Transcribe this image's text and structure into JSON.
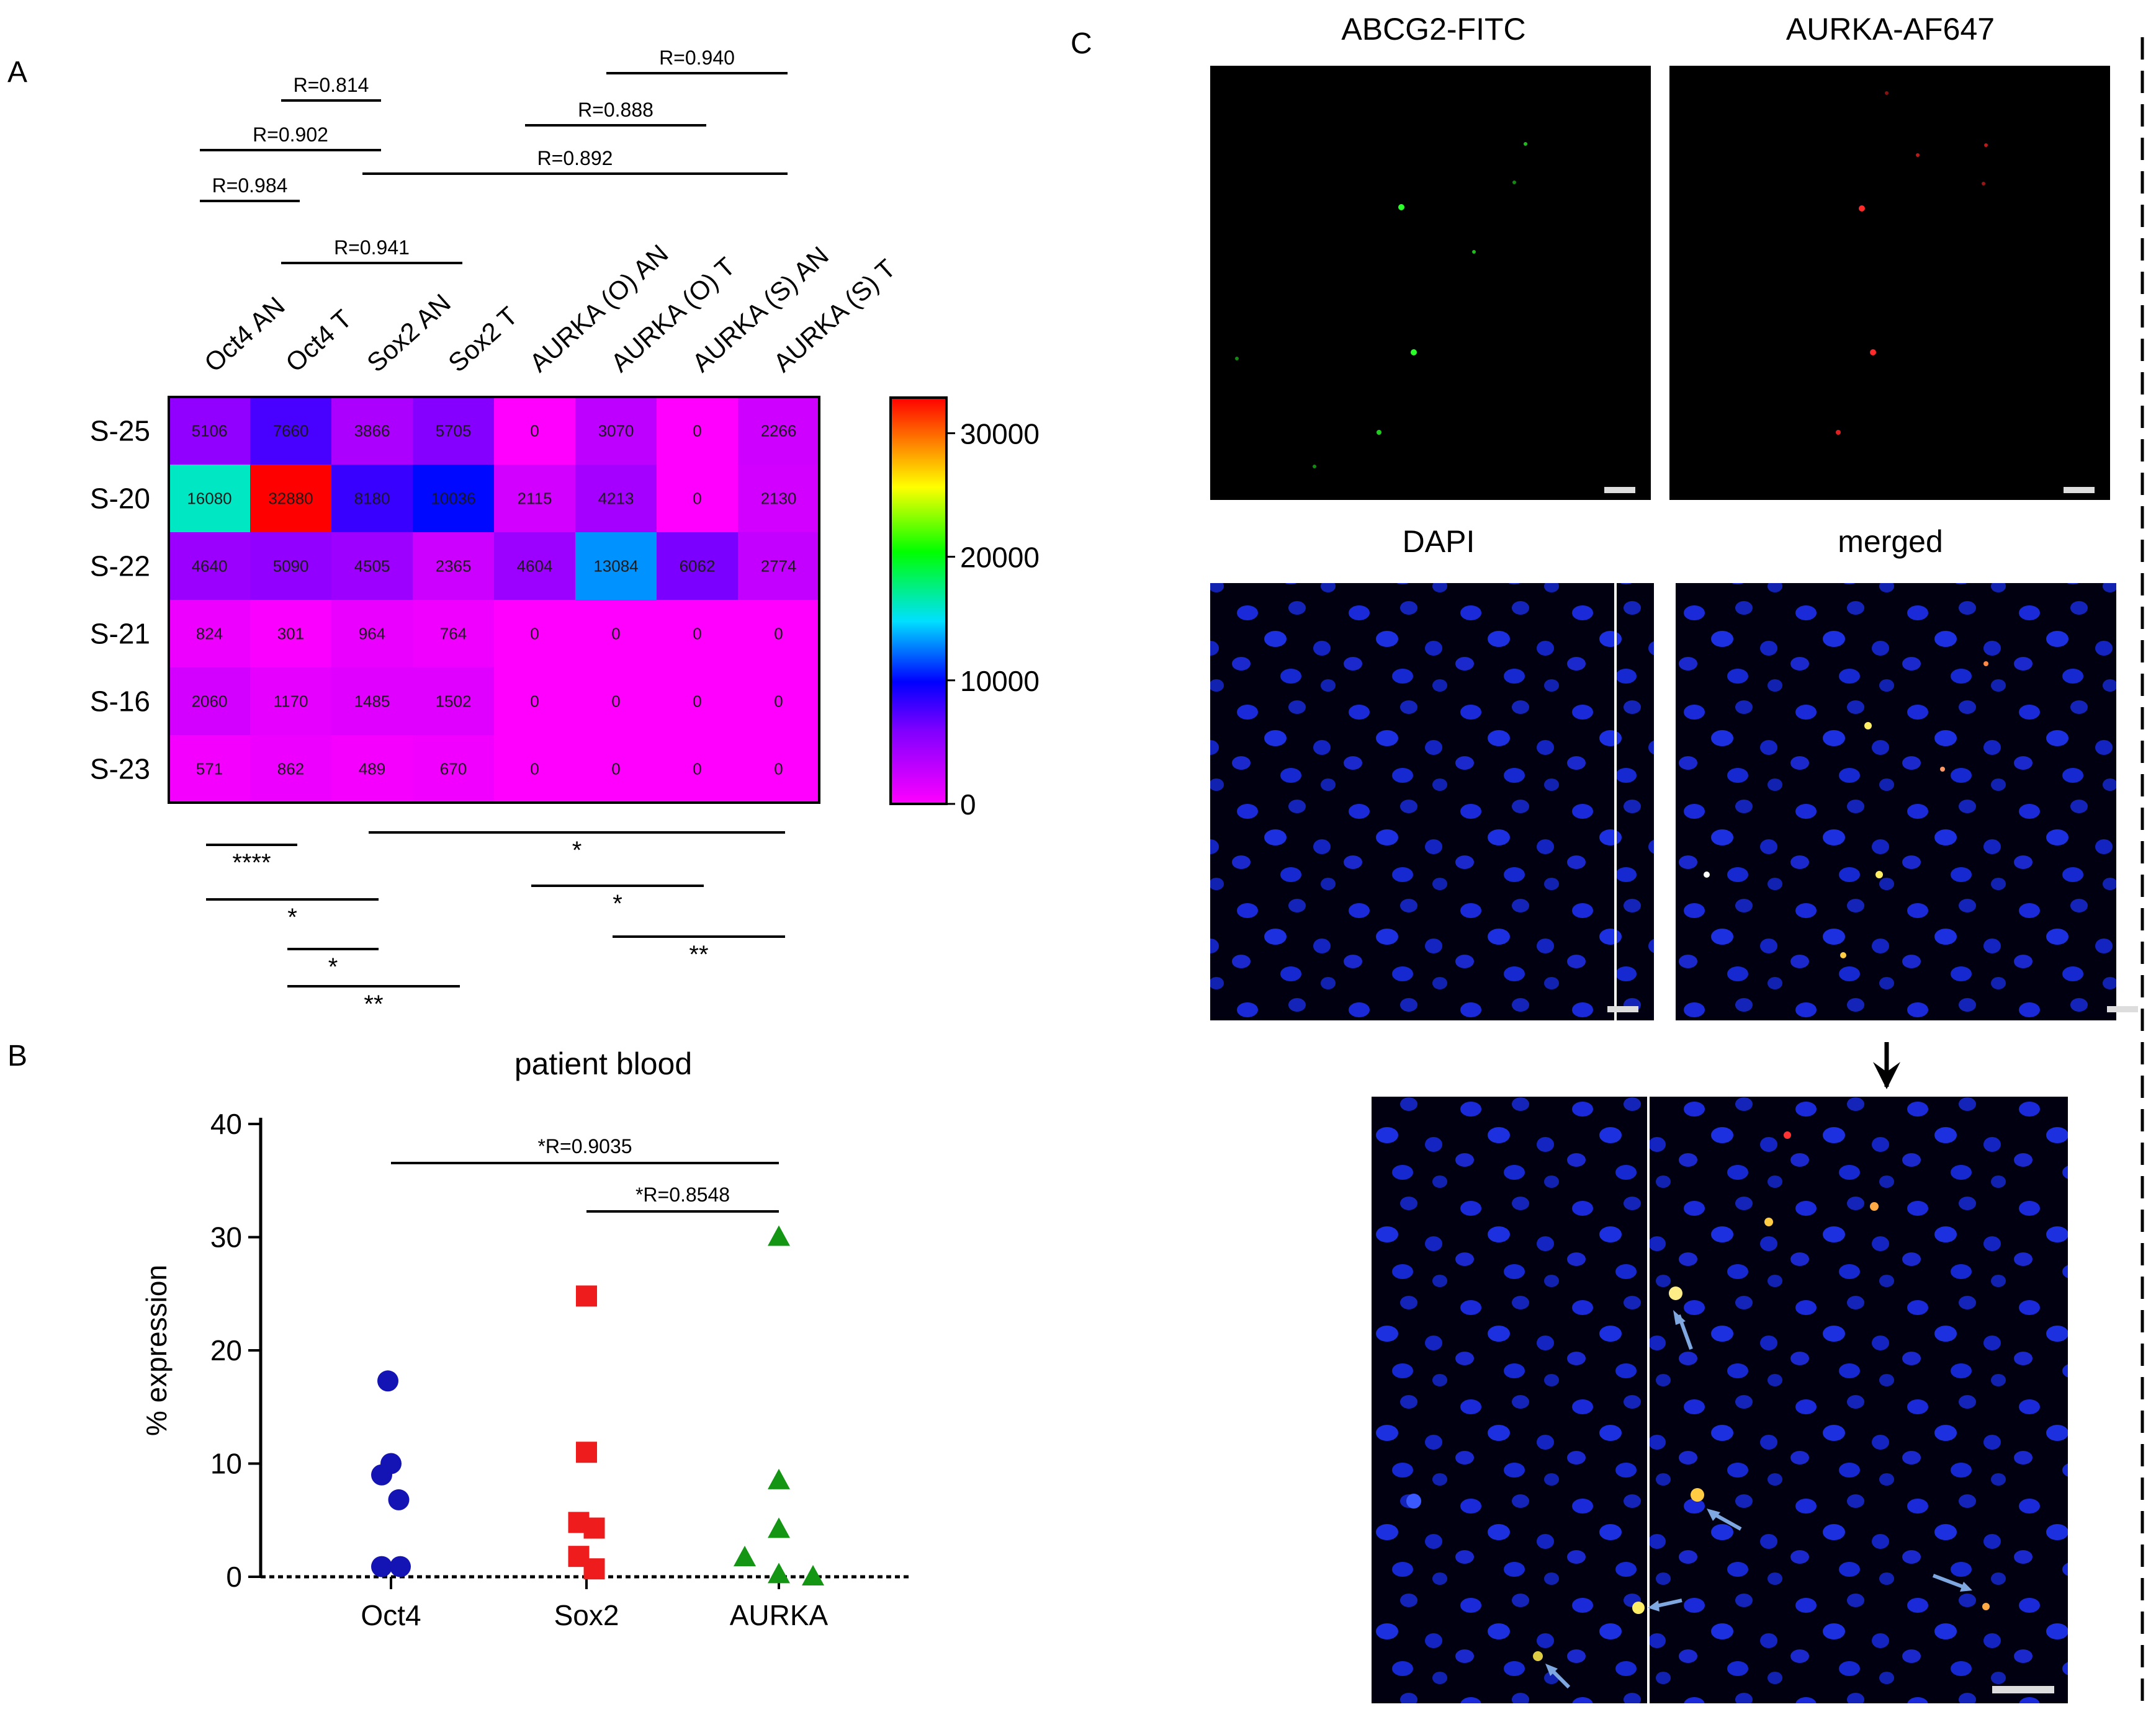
{
  "panel_labels": {
    "a": "A",
    "b": "B",
    "c": "C"
  },
  "chart_data": [
    {
      "type": "heatmap",
      "columns": [
        "Oct4 AN",
        "Oct4 T",
        "Sox2 AN",
        "Sox2 T",
        "AURKA (O) AN",
        "AURKA (O) T",
        "AURKA (S) AN",
        "AURKA (S) T"
      ],
      "rows": [
        "S-25",
        "S-20",
        "S-22",
        "S-21",
        "S-16",
        "S-23"
      ],
      "values": [
        [
          5106,
          7660,
          3866,
          5705,
          0,
          3070,
          0,
          2266
        ],
        [
          16080,
          32880,
          8180,
          10036,
          2115,
          4213,
          0,
          2130
        ],
        [
          4640,
          5090,
          4505,
          2365,
          4604,
          13084,
          6062,
          2774
        ],
        [
          824,
          301,
          964,
          764,
          0,
          0,
          0,
          0
        ],
        [
          2060,
          1170,
          1485,
          1502,
          0,
          0,
          0,
          0
        ],
        [
          571,
          862,
          489,
          670,
          0,
          0,
          0,
          0
        ]
      ],
      "value_labels": [
        [
          "5106",
          "7660",
          "3866",
          "5705",
          "0",
          "3070",
          "0",
          "2266"
        ],
        [
          "16080",
          "32880",
          "8180",
          "10036",
          "2115",
          "4213",
          "0",
          "2130"
        ],
        [
          "4640",
          "5090",
          "4505",
          "2365",
          "4604",
          "13084",
          "6062",
          "2774"
        ],
        [
          "824",
          "301",
          "964",
          "764",
          "0",
          "0",
          "0",
          "0"
        ],
        [
          "2060",
          "1170",
          "1485",
          "1502",
          "0",
          "0",
          "0",
          "0"
        ],
        [
          "571",
          "862",
          "489",
          "670",
          "0",
          "0",
          "0",
          "0"
        ]
      ],
      "colorbar": {
        "min": 0,
        "max": 32880,
        "ticks": [
          0,
          10000,
          20000,
          30000
        ],
        "tick_labels": [
          "0",
          "10000",
          "20000",
          "30000"
        ]
      },
      "correlations": [
        {
          "label": "R=0.940",
          "from": 5,
          "to": 7
        },
        {
          "label": "R=0.814",
          "from": 1,
          "to": 2
        },
        {
          "label": "R=0.888",
          "from": 4,
          "to": 6
        },
        {
          "label": "R=0.902",
          "from": 0,
          "to": 2
        },
        {
          "label": "R=0.892",
          "from": 2,
          "to": 7
        },
        {
          "label": "R=0.984",
          "from": 0,
          "to": 1
        },
        {
          "label": "R=0.941",
          "from": 1,
          "to": 3
        }
      ],
      "significance": [
        {
          "label": "****",
          "from": 0,
          "to": 1
        },
        {
          "label": "*",
          "from": 2,
          "to": 7
        },
        {
          "label": "*",
          "from": 0,
          "to": 2
        },
        {
          "label": "*",
          "from": 4,
          "to": 6
        },
        {
          "label": "*",
          "from": 1,
          "to": 2
        },
        {
          "label": "**",
          "from": 5,
          "to": 7
        },
        {
          "label": "**",
          "from": 1,
          "to": 3
        }
      ]
    },
    {
      "type": "scatter",
      "title": "patient blood",
      "ylabel": "% expression",
      "xlabel": "",
      "categories": [
        "Oct4",
        "Sox2",
        "AURKA"
      ],
      "ylim": [
        0,
        40
      ],
      "yticks": [
        0,
        10,
        20,
        30,
        40
      ],
      "series": [
        {
          "category": "Oct4",
          "marker": "circle",
          "color": "#1414b4",
          "points": [
            [
              -0.02,
              17.3
            ],
            [
              0,
              10
            ],
            [
              -0.06,
              9
            ],
            [
              0.05,
              6.8
            ],
            [
              -0.06,
              0.9
            ],
            [
              0.06,
              0.9
            ]
          ]
        },
        {
          "category": "Sox2",
          "marker": "square",
          "color": "#ee1c1c",
          "points": [
            [
              0,
              24.8
            ],
            [
              0,
              11
            ],
            [
              -0.05,
              4.8
            ],
            [
              0.05,
              4.3
            ],
            [
              -0.05,
              1.8
            ],
            [
              0.05,
              0.7
            ]
          ]
        },
        {
          "category": "AURKA",
          "marker": "triangle",
          "color": "#149614",
          "points": [
            [
              0,
              30
            ],
            [
              0,
              8.5
            ],
            [
              0,
              4.2
            ],
            [
              -0.22,
              1.7
            ],
            [
              0,
              0.2
            ],
            [
              0.22,
              0
            ]
          ]
        }
      ],
      "annotations": [
        {
          "label": "*R=0.9035",
          "from": 0,
          "to": 2
        },
        {
          "label": "*R=0.8548",
          "from": 1,
          "to": 2
        }
      ]
    }
  ],
  "microscopy": {
    "labels": {
      "abcg2": "ABCG2-FITC",
      "aurka": "AURKA-AF647",
      "dapi": "DAPI",
      "merged": "merged"
    }
  }
}
